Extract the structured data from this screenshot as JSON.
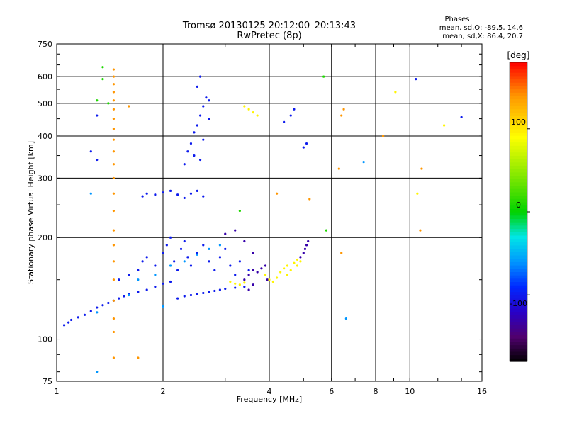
{
  "chart_data": {
    "type": "scatter",
    "title": "Tromsø 20130125 20:12:00–20:13:43",
    "subtitle": "RwPretec (8p)",
    "xlabel": "Frequency [MHz]",
    "ylabel": "Stationary phase Virtual Height [km]",
    "x_scale": "log",
    "y_scale": "log",
    "xlim": [
      1,
      16
    ],
    "ylim": [
      75,
      750
    ],
    "x_ticks": [
      1,
      2,
      4,
      6,
      8,
      10,
      16
    ],
    "x_tick_labels": [
      "1",
      "2",
      "4",
      "6",
      "8",
      "10",
      "16"
    ],
    "y_ticks": [
      75,
      100,
      200,
      300,
      400,
      500,
      600,
      750
    ],
    "y_tick_labels": [
      "75",
      "100",
      "200",
      "300",
      "400",
      "500",
      "600",
      "750"
    ],
    "grid_x": [
      2,
      4,
      6,
      8,
      10
    ],
    "grid_y": [
      100,
      200,
      300,
      400,
      500,
      600
    ],
    "phase_stats": {
      "title": "Phases",
      "line1": "mean, sd,O: -89.5, 14.6",
      "line2": "mean, sd,X: 86.4, 20.7"
    },
    "colorbar": {
      "label": "[deg]",
      "range": [
        -180,
        180
      ],
      "ticks": [
        -100,
        0,
        100
      ],
      "tick_labels": [
        "-100",
        "0",
        "100"
      ]
    },
    "series": [
      {
        "phase": -100,
        "points": [
          [
            1.05,
            110
          ],
          [
            1.08,
            112
          ],
          [
            1.1,
            114
          ],
          [
            1.15,
            116
          ],
          [
            1.2,
            118
          ],
          [
            1.25,
            121
          ],
          [
            1.3,
            124
          ],
          [
            1.35,
            126
          ],
          [
            1.4,
            128
          ],
          [
            1.45,
            130
          ],
          [
            1.5,
            132
          ],
          [
            1.55,
            134
          ],
          [
            1.6,
            136
          ],
          [
            1.7,
            138
          ],
          [
            1.8,
            140
          ],
          [
            1.9,
            143
          ],
          [
            2.0,
            146
          ],
          [
            2.1,
            148
          ],
          [
            2.2,
            132
          ],
          [
            2.3,
            134
          ],
          [
            2.4,
            135
          ],
          [
            2.5,
            136
          ],
          [
            2.6,
            137
          ],
          [
            2.7,
            138
          ],
          [
            2.8,
            139
          ],
          [
            2.9,
            140
          ],
          [
            3.0,
            141
          ],
          [
            3.2,
            142
          ],
          [
            3.4,
            143
          ],
          [
            1.5,
            150
          ],
          [
            1.6,
            155
          ],
          [
            1.7,
            160
          ],
          [
            1.75,
            170
          ],
          [
            1.8,
            175
          ],
          [
            1.9,
            165
          ],
          [
            2.0,
            180
          ],
          [
            2.05,
            190
          ],
          [
            2.1,
            200
          ],
          [
            2.15,
            170
          ],
          [
            2.2,
            160
          ],
          [
            2.25,
            185
          ],
          [
            2.3,
            195
          ],
          [
            2.35,
            175
          ],
          [
            2.4,
            165
          ],
          [
            2.5,
            180
          ],
          [
            2.6,
            190
          ],
          [
            2.7,
            170
          ],
          [
            2.8,
            160
          ],
          [
            2.9,
            175
          ],
          [
            3.0,
            185
          ],
          [
            3.1,
            165
          ],
          [
            3.2,
            155
          ],
          [
            3.3,
            170
          ],
          [
            3.5,
            160
          ],
          [
            1.75,
            265
          ],
          [
            1.8,
            270
          ],
          [
            1.9,
            268
          ],
          [
            2.0,
            272
          ],
          [
            2.1,
            275
          ],
          [
            2.2,
            268
          ],
          [
            2.3,
            262
          ],
          [
            2.4,
            270
          ],
          [
            2.5,
            275
          ],
          [
            2.6,
            265
          ],
          [
            2.3,
            330
          ],
          [
            2.35,
            360
          ],
          [
            2.4,
            380
          ],
          [
            2.45,
            410
          ],
          [
            2.5,
            430
          ],
          [
            2.55,
            460
          ],
          [
            2.6,
            490
          ],
          [
            2.65,
            520
          ],
          [
            2.5,
            560
          ],
          [
            2.55,
            600
          ],
          [
            2.45,
            350
          ],
          [
            2.55,
            340
          ],
          [
            2.6,
            390
          ],
          [
            2.7,
            450
          ],
          [
            2.7,
            510
          ],
          [
            5.0,
            370
          ],
          [
            5.1,
            380
          ],
          [
            4.6,
            460
          ],
          [
            4.7,
            480
          ],
          [
            4.4,
            440
          ],
          [
            1.25,
            360
          ],
          [
            1.3,
            340
          ],
          [
            1.3,
            460
          ],
          [
            10.4,
            590
          ],
          [
            14.0,
            455
          ]
        ]
      },
      {
        "phase": -130,
        "points": [
          [
            3.4,
            150
          ],
          [
            3.5,
            155
          ],
          [
            3.6,
            160
          ],
          [
            3.7,
            158
          ],
          [
            3.8,
            162
          ],
          [
            3.9,
            165
          ],
          [
            3.95,
            150
          ],
          [
            3.6,
            145
          ],
          [
            3.5,
            140
          ],
          [
            4.9,
            175
          ],
          [
            5.0,
            180
          ],
          [
            5.05,
            185
          ],
          [
            5.1,
            190
          ],
          [
            5.15,
            195
          ],
          [
            3.0,
            205
          ],
          [
            3.2,
            210
          ],
          [
            3.4,
            195
          ],
          [
            3.6,
            180
          ]
        ]
      },
      {
        "phase": -60,
        "points": [
          [
            1.7,
            150
          ],
          [
            1.9,
            155
          ],
          [
            2.1,
            165
          ],
          [
            2.3,
            170
          ],
          [
            2.5,
            178
          ],
          [
            2.7,
            185
          ],
          [
            2.9,
            190
          ],
          [
            1.3,
            120
          ],
          [
            1.6,
            135
          ],
          [
            2.0,
            125
          ],
          [
            6.6,
            115
          ],
          [
            7.4,
            335
          ],
          [
            1.3,
            80
          ],
          [
            1.25,
            270
          ]
        ]
      },
      {
        "phase": 10,
        "points": [
          [
            1.35,
            640
          ],
          [
            1.3,
            510
          ],
          [
            1.4,
            500
          ],
          [
            5.7,
            600
          ],
          [
            3.3,
            240
          ],
          [
            5.8,
            210
          ],
          [
            1.35,
            590
          ]
        ]
      },
      {
        "phase": 95,
        "points": [
          [
            3.1,
            148
          ],
          [
            3.2,
            146
          ],
          [
            3.3,
            145
          ],
          [
            3.4,
            147
          ],
          [
            3.9,
            155
          ],
          [
            4.0,
            150
          ],
          [
            4.1,
            148
          ],
          [
            4.2,
            152
          ],
          [
            4.3,
            158
          ],
          [
            4.4,
            162
          ],
          [
            4.5,
            165
          ],
          [
            4.6,
            160
          ],
          [
            4.7,
            168
          ],
          [
            4.8,
            172
          ],
          [
            4.9,
            170
          ],
          [
            4.8,
            165
          ],
          [
            4.5,
            155
          ],
          [
            3.5,
            480
          ],
          [
            3.6,
            470
          ],
          [
            3.7,
            460
          ],
          [
            3.4,
            490
          ],
          [
            9.1,
            540
          ],
          [
            12.5,
            430
          ],
          [
            10.5,
            270
          ]
        ]
      },
      {
        "phase": 140,
        "points": [
          [
            1.45,
            630
          ],
          [
            1.45,
            600
          ],
          [
            1.45,
            570
          ],
          [
            1.45,
            540
          ],
          [
            1.45,
            510
          ],
          [
            1.45,
            480
          ],
          [
            1.45,
            450
          ],
          [
            1.45,
            420
          ],
          [
            1.45,
            390
          ],
          [
            1.45,
            360
          ],
          [
            1.45,
            330
          ],
          [
            1.45,
            300
          ],
          [
            1.45,
            270
          ],
          [
            1.45,
            240
          ],
          [
            1.45,
            210
          ],
          [
            1.45,
            190
          ],
          [
            1.45,
            170
          ],
          [
            1.45,
            150
          ],
          [
            1.45,
            130
          ],
          [
            1.45,
            115
          ],
          [
            1.45,
            105
          ],
          [
            1.45,
            88
          ],
          [
            1.7,
            88
          ],
          [
            1.6,
            490
          ],
          [
            6.5,
            480
          ],
          [
            6.4,
            460
          ],
          [
            10.8,
            320
          ],
          [
            10.7,
            210
          ],
          [
            4.2,
            270
          ],
          [
            5.2,
            260
          ],
          [
            8.4,
            400
          ],
          [
            6.3,
            320
          ],
          [
            6.4,
            180
          ]
        ]
      }
    ]
  }
}
